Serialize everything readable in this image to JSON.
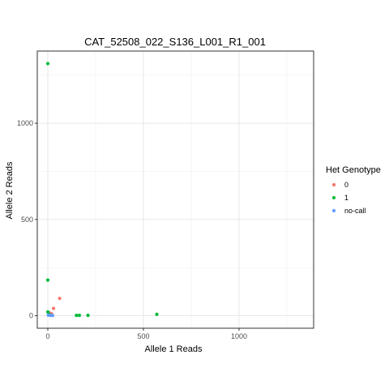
{
  "chart_data": {
    "type": "scatter",
    "title": "CAT_52508_022_S136_L001_R1_001",
    "xlabel": "Allele 1 Reads",
    "ylabel": "Allele 2 Reads",
    "xlim": [
      -55,
      1390
    ],
    "ylim": [
      -65,
      1375
    ],
    "x_ticks": [
      0,
      500,
      1000
    ],
    "y_ticks": [
      0,
      500,
      1000
    ],
    "grid": true,
    "legend": {
      "title": "Het Genotype",
      "placement": "right"
    },
    "series": [
      {
        "name": "0",
        "color": "#F8766D",
        "points": [
          {
            "x": 62,
            "y": 90
          },
          {
            "x": 30,
            "y": 38
          },
          {
            "x": 8,
            "y": 15
          },
          {
            "x": 20,
            "y": 10
          }
        ]
      },
      {
        "name": "1",
        "color": "#00BA38",
        "points": [
          {
            "x": 0,
            "y": 1310
          },
          {
            "x": 0,
            "y": 185
          },
          {
            "x": 0,
            "y": 20
          },
          {
            "x": 5,
            "y": 8
          },
          {
            "x": 10,
            "y": 5
          },
          {
            "x": 150,
            "y": 2
          },
          {
            "x": 165,
            "y": 2
          },
          {
            "x": 210,
            "y": 2
          },
          {
            "x": 570,
            "y": 7
          }
        ]
      },
      {
        "name": "no-call",
        "color": "#619CFF",
        "points": [
          {
            "x": 3,
            "y": 3
          },
          {
            "x": 15,
            "y": 2
          },
          {
            "x": 25,
            "y": 1
          }
        ]
      }
    ]
  }
}
